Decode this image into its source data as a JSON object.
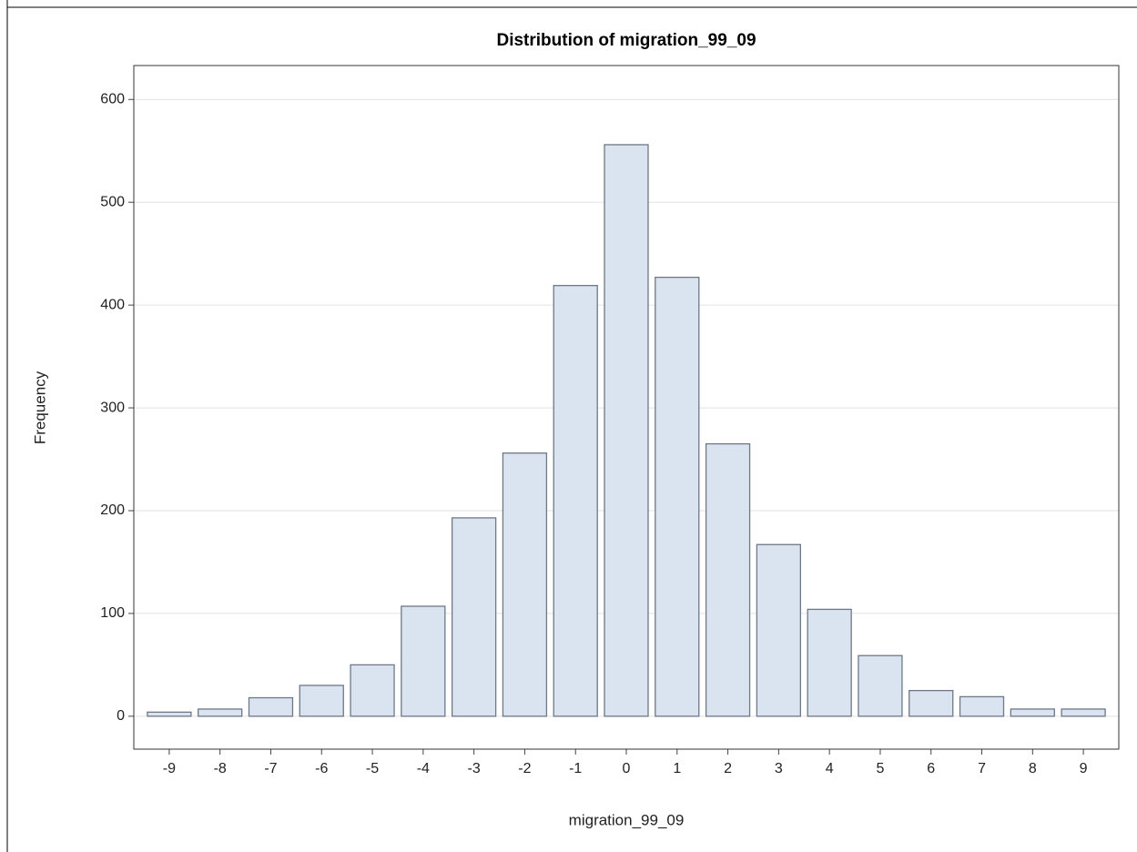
{
  "chart_data": {
    "type": "bar",
    "title": "Distribution of migration_99_09",
    "x_label": "migration_99_09",
    "y_label": "Frequency",
    "categories": [
      "-9",
      "-8",
      "-7",
      "-6",
      "-5",
      "-4",
      "-3",
      "-2",
      "-1",
      "0",
      "1",
      "2",
      "3",
      "4",
      "5",
      "6",
      "7",
      "8",
      "9"
    ],
    "values": [
      4,
      7,
      18,
      30,
      50,
      107,
      193,
      256,
      419,
      556,
      427,
      265,
      167,
      104,
      59,
      25,
      19,
      7,
      7
    ],
    "color": "#dae3f0",
    "edge_color": "#6e7887",
    "ylim": [
      -32,
      633
    ],
    "yticks": [
      0,
      100,
      200,
      300,
      400,
      500,
      600
    ],
    "grid": true
  }
}
